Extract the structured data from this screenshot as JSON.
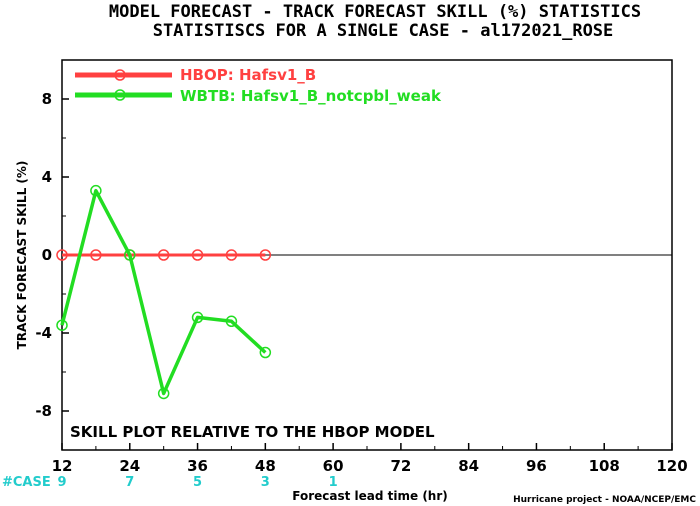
{
  "chart_data": {
    "type": "line",
    "title": "MODEL FORECAST - TRACK FORECAST SKILL (%) STATISTICS",
    "subtitle": "STATISTISCS FOR A SINGLE CASE - al172021_ROSE",
    "xlabel": "Forecast lead time (hr)",
    "ylabel": "TRACK FORECAST SKILL (%)",
    "xlim": [
      12,
      120
    ],
    "ylim": [
      -10,
      10
    ],
    "xticks": [
      12,
      24,
      36,
      48,
      60,
      72,
      84,
      96,
      108,
      120
    ],
    "yticks": [
      -8,
      -4,
      0,
      4,
      8
    ],
    "annotation": "SKILL PLOT RELATIVE TO THE HBOP MODEL",
    "legend_position": "top-left",
    "series": [
      {
        "name": "HBOP: Hafsv1_B",
        "color": "#ff4040",
        "x": [
          12,
          18,
          24,
          30,
          36,
          42,
          48
        ],
        "y": [
          0,
          0,
          0,
          0,
          0,
          0,
          0
        ]
      },
      {
        "name": "WBTB: Hafsv1_B_notcpbl_weak",
        "color": "#22dd22",
        "x": [
          12,
          18,
          24,
          30,
          36,
          42,
          48
        ],
        "y": [
          -3.6,
          3.3,
          0.0,
          -7.1,
          -3.2,
          -3.4,
          -5.0
        ]
      }
    ],
    "cases": {
      "label": "#CASE",
      "color": "#22cccc",
      "x": [
        12,
        24,
        36,
        48,
        60
      ],
      "values": [
        "9",
        "7",
        "5",
        "3",
        "1"
      ]
    }
  },
  "credit": "Hurricane project - NOAA/NCEP/EMC"
}
